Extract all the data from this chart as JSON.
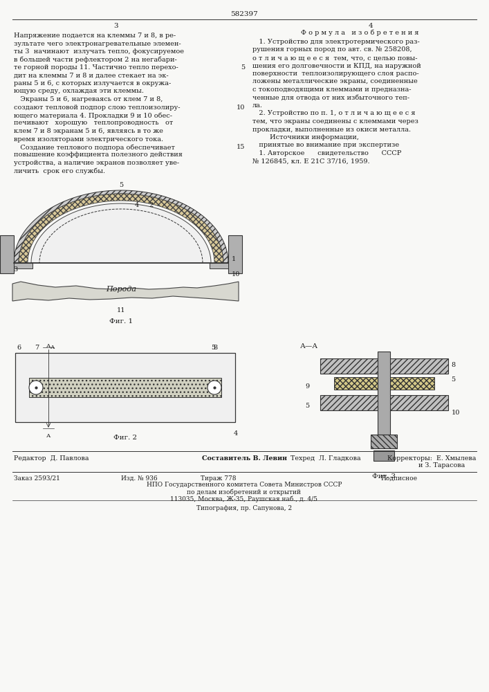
{
  "bg_color": "#f8f8f6",
  "text_color": "#1a1a1a",
  "page_number": "582397",
  "page_left": "3",
  "page_right": "4",
  "left_col_lines": [
    "Напряжение подается на клеммы 7 и 8, в ре-",
    "зультате чего электронагревательные элемен-",
    "ты 3  начинают  излучать тепло, фокусируемое",
    "в большей части рефлектором 2 на негабари-",
    "те горной породы 11. Частично тепло перехо-",
    "дит на клеммы 7 и 8 и далее стекает на эк-",
    "раны 5 и 6, с которых излучается в окружа-",
    "ющую среду, охлаждая эти клеммы.",
    "   Экраны 5 и 6, нагреваясь от клем 7 и 8,",
    "создают тепловой подпор слою теплоизолиру-",
    "ющего материала 4. Прокладки 9 и 10 обес-",
    "печивают   хорошую   теплопроводность   от",
    "клем 7 и 8 экранам 5 и 6, являясь в то же",
    "время изоляторами электрического тока.",
    "   Создание теплового подпора обеспечивает",
    "повышение коэффициента полезного действия",
    "устройства, а наличие экранов позволяет уве-",
    "личить  срок его службы."
  ],
  "line_numbers": [
    {
      "line_idx": 4,
      "num": "5"
    },
    {
      "line_idx": 9,
      "num": "10"
    },
    {
      "line_idx": 14,
      "num": "15"
    }
  ],
  "right_col_header": "Ф о р м у л а   и з о б р е т е н и я",
  "right_col_lines": [
    "   1. Устройство для электротермического раз-",
    "рушения горных пород по авт. св. № 258208,",
    "о т л и ч а ю щ е е с я  тем, что, с целью повы-",
    "шения его долговечности и КПД, на наружной",
    "поверхности  теплоизолирующего слоя распо-",
    "ложены металлические экраны, соединенные",
    "с токоподводящими клеммами и предназна-",
    "ченные для отвода от них избыточного теп-",
    "ла.",
    "   2. Устройство по п. 1, о т л и ч а ю щ е е с я",
    "тем, что экраны соединены с клеммами через",
    "прокладки, выполненные из окиси металла.",
    "        Источники информации,",
    "   принятые во внимание при экспертизе",
    "   1. Авторское      свидетельство      СССР",
    "№ 126845, кл. Е 21С 37/16, 1959."
  ],
  "bottom_editor": "Редактор  Д. Павлова",
  "bottom_composer": "Составитель В. Левин",
  "bottom_tech": "Техред  Л. Гладкова",
  "bottom_correctors": "Корректоры:  Е. Хмылева",
  "bottom_correctors2": "               и З. Тарасова",
  "bottom_order": "Заказ 2593/21",
  "bottom_izd": "Изд. № 936",
  "bottom_tirazh": "Тираж 778",
  "bottom_podpis": "Подписное",
  "bottom_npo": "НПО Государственного комитета Совета Министров СССР",
  "bottom_npo2": "по делам изобретений и открытий",
  "bottom_addr": "113035, Москва, Ж-35, Раушская наб., д. 4/5",
  "bottom_print": "Типография, пр. Сапунова, 2"
}
